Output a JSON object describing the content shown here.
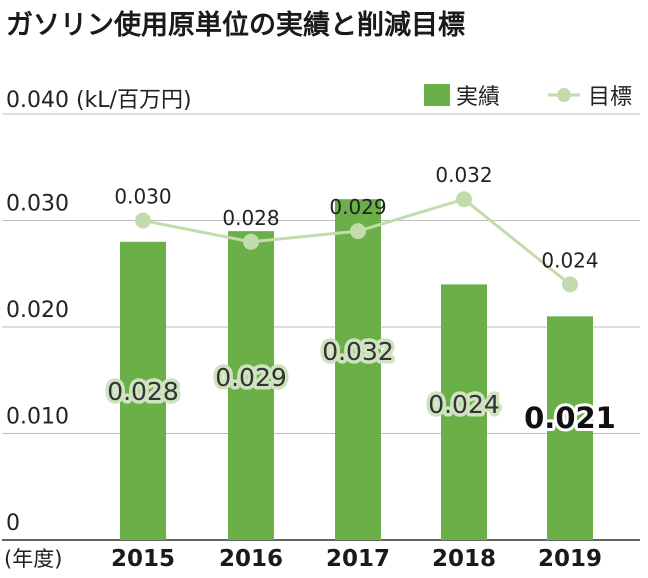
{
  "chart_data": {
    "type": "bar",
    "title": "ガソリン使用原単位の実績と削減目標",
    "ylabel": "0.040 (kL/百万円)",
    "xlabel": "(年度)",
    "ylim": [
      0,
      0.04
    ],
    "y_ticks": [
      "0",
      "0.010",
      "0.020",
      "0.030"
    ],
    "categories": [
      "2015",
      "2016",
      "2017",
      "2018",
      "2019"
    ],
    "series": [
      {
        "name": "実績",
        "type": "bar",
        "values": [
          0.028,
          0.029,
          0.032,
          0.024,
          0.021
        ],
        "labels": [
          "0.028",
          "0.029",
          "0.032",
          "0.024",
          "0.021"
        ],
        "color": "#6aaf48"
      },
      {
        "name": "目標",
        "type": "line",
        "values": [
          0.03,
          0.028,
          0.029,
          0.032,
          0.024
        ],
        "labels": [
          "0.030",
          "0.028",
          "0.029",
          "0.032",
          "0.024"
        ],
        "color": "#c2dcae"
      }
    ],
    "grid": true,
    "legend": "top-right"
  }
}
